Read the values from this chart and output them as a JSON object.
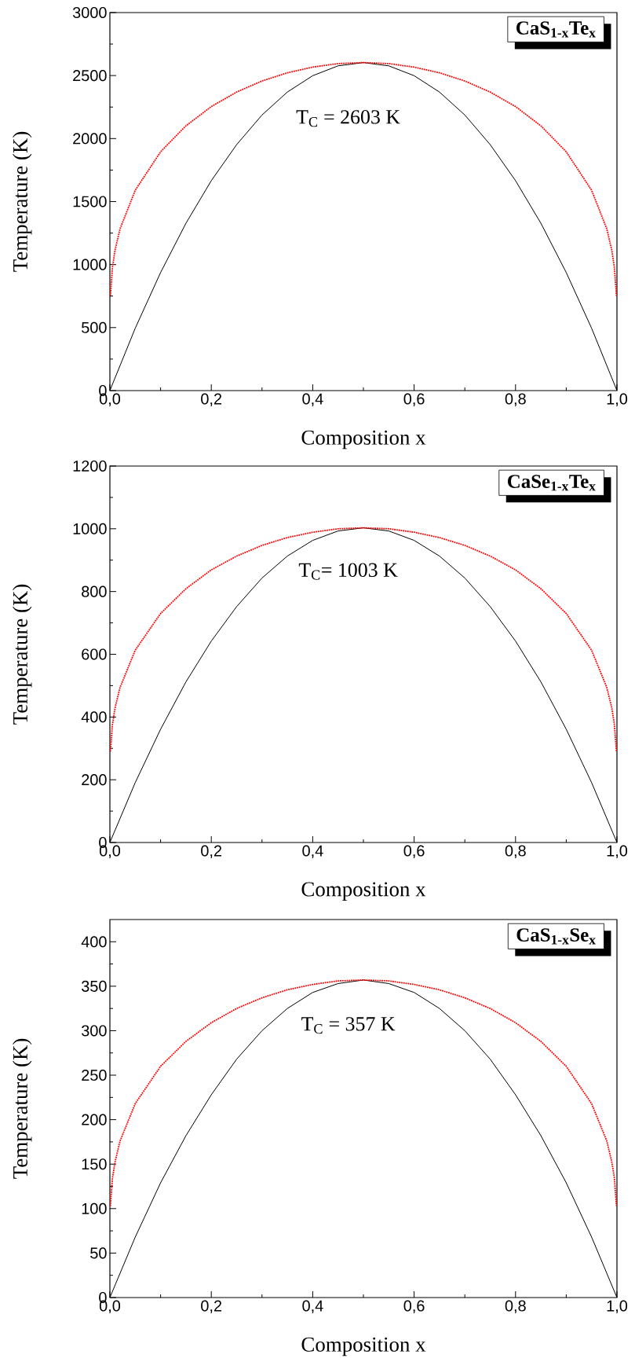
{
  "chart_data": [
    {
      "type": "line",
      "title": "CaS$_{1-x}$Te$_{x}$",
      "xlabel": "Composition x",
      "ylabel": "Temperature (K)",
      "annotations": [
        "T$_{C}$ = 2603 K"
      ],
      "xlim": [
        0,
        1
      ],
      "ylim": [
        0,
        3000
      ],
      "xticks": [
        {
          "value": 0,
          "label": "0,0"
        },
        {
          "value": 0.2,
          "label": "0,2"
        },
        {
          "value": 0.4,
          "label": "0,4"
        },
        {
          "value": 0.6,
          "label": "0,6"
        },
        {
          "value": 0.8,
          "label": "0,8"
        },
        {
          "value": 1,
          "label": "1,0"
        }
      ],
      "yticks": [
        0,
        500,
        1000,
        1500,
        2000,
        2500,
        3000
      ],
      "grid": false,
      "marker": "none",
      "series": [
        {
          "color": "#000000",
          "line_style": "solid",
          "x": [
            0,
            0.05,
            0.1,
            0.15,
            0.2,
            0.25,
            0.3,
            0.35,
            0.4,
            0.45,
            0.5,
            0.55,
            0.6,
            0.65,
            0.7,
            0.75,
            0.8,
            0.85,
            0.9,
            0.95,
            1
          ],
          "values": [
            0,
            495,
            937,
            1328,
            1666,
            1952,
            2187,
            2369,
            2499,
            2577,
            2603,
            2577,
            2499,
            2369,
            2187,
            1952,
            1666,
            1328,
            937,
            495,
            0
          ]
        },
        {
          "color": "#ff0000",
          "line_style": "dotted",
          "x": [
            0.001,
            0.005,
            0.01,
            0.02,
            0.05,
            0.1,
            0.15,
            0.2,
            0.25,
            0.3,
            0.35,
            0.4,
            0.45,
            0.5,
            0.55,
            0.6,
            0.65,
            0.7,
            0.75,
            0.8,
            0.85,
            0.9,
            0.95,
            0.98,
            0.99,
            0.995,
            0.999
          ],
          "values": [
            752,
            974,
            1111,
            1283,
            1590,
            1895,
            2101,
            2254,
            2369,
            2457,
            2522,
            2567,
            2595,
            2603,
            2595,
            2567,
            2522,
            2457,
            2369,
            2254,
            2101,
            1895,
            1590,
            1283,
            1111,
            974,
            752
          ]
        }
      ]
    },
    {
      "type": "line",
      "title": "CaSe$_{1-x}$Te$_{x}$",
      "xlabel": "Composition x",
      "ylabel": "Temperature (K)",
      "annotations": [
        "T$_{C}$= 1003 K"
      ],
      "xlim": [
        0,
        1
      ],
      "ylim": [
        0,
        1200
      ],
      "xticks": [
        {
          "value": 0,
          "label": "0,0"
        },
        {
          "value": 0.2,
          "label": "0,2"
        },
        {
          "value": 0.4,
          "label": "0,4"
        },
        {
          "value": 0.6,
          "label": "0,6"
        },
        {
          "value": 0.8,
          "label": "0,8"
        },
        {
          "value": 1,
          "label": "1,0"
        }
      ],
      "yticks": [
        0,
        200,
        400,
        600,
        800,
        1000,
        1200
      ],
      "grid": false,
      "marker": "none",
      "series": [
        {
          "color": "#000000",
          "line_style": "solid",
          "x": [
            0,
            0.05,
            0.1,
            0.15,
            0.2,
            0.25,
            0.3,
            0.35,
            0.4,
            0.45,
            0.5,
            0.55,
            0.6,
            0.65,
            0.7,
            0.75,
            0.8,
            0.85,
            0.9,
            0.95,
            1
          ],
          "values": [
            0,
            191,
            361,
            512,
            642,
            752,
            843,
            913,
            963,
            993,
            1003,
            993,
            963,
            913,
            843,
            752,
            642,
            512,
            361,
            191,
            0
          ]
        },
        {
          "color": "#ff0000",
          "line_style": "dotted",
          "x": [
            0.001,
            0.005,
            0.01,
            0.02,
            0.05,
            0.1,
            0.15,
            0.2,
            0.25,
            0.3,
            0.35,
            0.4,
            0.45,
            0.5,
            0.55,
            0.6,
            0.65,
            0.7,
            0.75,
            0.8,
            0.85,
            0.9,
            0.95,
            0.98,
            0.99,
            0.995,
            0.999
          ],
          "values": [
            290,
            375,
            428,
            494,
            613,
            730,
            809,
            869,
            913,
            947,
            972,
            989,
            1000,
            1003,
            1000,
            989,
            972,
            947,
            913,
            869,
            809,
            730,
            613,
            494,
            428,
            375,
            290
          ]
        }
      ]
    },
    {
      "type": "line",
      "title": "CaS$_{1-x}$Se$_{x}$",
      "xlabel": "Composition x",
      "ylabel": "Temperature (K)",
      "annotations": [
        "T$_{C}$ = 357 K"
      ],
      "xlim": [
        0,
        1
      ],
      "ylim": [
        0,
        425
      ],
      "xticks": [
        {
          "value": 0,
          "label": "0,0"
        },
        {
          "value": 0.2,
          "label": "0,2"
        },
        {
          "value": 0.4,
          "label": "0,4"
        },
        {
          "value": 0.6,
          "label": "0,6"
        },
        {
          "value": 0.8,
          "label": "0,8"
        },
        {
          "value": 1,
          "label": "1,0"
        }
      ],
      "yticks": [
        0,
        50,
        100,
        150,
        200,
        250,
        300,
        350,
        400
      ],
      "grid": false,
      "marker": "none",
      "series": [
        {
          "color": "#000000",
          "line_style": "solid",
          "x": [
            0,
            0.05,
            0.1,
            0.15,
            0.2,
            0.25,
            0.3,
            0.35,
            0.4,
            0.45,
            0.5,
            0.55,
            0.6,
            0.65,
            0.7,
            0.75,
            0.8,
            0.85,
            0.9,
            0.95,
            1
          ],
          "values": [
            0,
            68,
            129,
            182,
            228,
            268,
            300,
            325,
            343,
            353,
            357,
            353,
            343,
            325,
            300,
            268,
            228,
            182,
            129,
            68,
            0
          ]
        },
        {
          "color": "#ff0000",
          "line_style": "dotted",
          "x": [
            0.001,
            0.005,
            0.01,
            0.02,
            0.05,
            0.1,
            0.15,
            0.2,
            0.25,
            0.3,
            0.35,
            0.4,
            0.45,
            0.5,
            0.55,
            0.6,
            0.65,
            0.7,
            0.75,
            0.8,
            0.85,
            0.9,
            0.95,
            0.98,
            0.99,
            0.995,
            0.999
          ],
          "values": [
            103,
            134,
            152,
            176,
            218,
            260,
            288,
            309,
            325,
            337,
            346,
            352,
            356,
            357,
            356,
            352,
            346,
            337,
            325,
            309,
            288,
            260,
            218,
            176,
            152,
            134,
            103
          ]
        }
      ]
    }
  ]
}
